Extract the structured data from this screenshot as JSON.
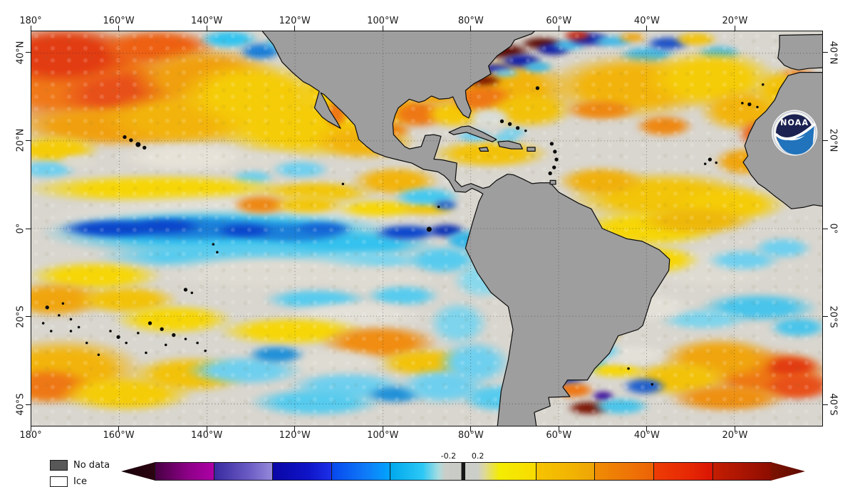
{
  "axes": {
    "lon_labels": [
      "180°",
      "160°W",
      "140°W",
      "120°W",
      "100°W",
      "80°W",
      "60°W",
      "40°W",
      "20°W"
    ],
    "lat_labels": [
      "40°N",
      "20°N",
      "0°",
      "20°S",
      "40°S"
    ]
  },
  "legend": {
    "no_data_label": "No data",
    "ice_label": "Ice"
  },
  "logo": {
    "text": "NOAA"
  },
  "colorbar": {
    "tick_labels": {
      "neg": "-0.2",
      "pos": "0.2"
    },
    "left_arrow_color": "#2b0412",
    "right_arrow_color": "#5e0b00",
    "segments": [
      {
        "w": 1,
        "stops": [
          [
            "#470043",
            0
          ],
          [
            "#8c0086",
            55
          ],
          [
            "#ad00a6",
            100
          ]
        ]
      },
      {
        "w": 1,
        "nb": false,
        "stops": [
          [
            "#3a2aa0",
            0
          ],
          [
            "#6a5cc4",
            60
          ],
          [
            "#9488da",
            100
          ]
        ]
      },
      {
        "w": 1,
        "nb": false,
        "stops": [
          [
            "#0a06a6",
            0
          ],
          [
            "#0f14c8",
            60
          ],
          [
            "#1c30e8",
            100
          ]
        ]
      },
      {
        "w": 1,
        "nb": false,
        "stops": [
          [
            "#0748ee",
            0
          ],
          [
            "#0f7cf8",
            60
          ],
          [
            "#02a4fe",
            100
          ]
        ]
      },
      {
        "w": 1,
        "nb": false,
        "stops": [
          [
            "#00a8ec",
            0
          ],
          [
            "#2cc8f6",
            55
          ],
          [
            "#a8dce0",
            82
          ],
          [
            "#cbcdc8",
            94
          ],
          [
            "#cbcdc8",
            100
          ]
        ]
      },
      {
        "w": 0.5,
        "nb": true,
        "stops": [
          [
            "#c9cbc6",
            0
          ],
          [
            "#c9cbc6",
            44
          ],
          [
            "#161616",
            44
          ],
          [
            "#161616",
            58
          ],
          [
            "#cccec9",
            58
          ],
          [
            "#cccec9",
            100
          ]
        ]
      },
      {
        "w": 1,
        "nb": true,
        "stops": [
          [
            "#cccec9",
            0
          ],
          [
            "#ddd89a",
            12
          ],
          [
            "#f4ec02",
            38
          ],
          [
            "#f8dc00",
            100
          ]
        ]
      },
      {
        "w": 1,
        "nb": false,
        "stops": [
          [
            "#f6c400",
            0
          ],
          [
            "#f2b402",
            60
          ],
          [
            "#eea406",
            100
          ]
        ]
      },
      {
        "w": 1,
        "nb": false,
        "stops": [
          [
            "#f08c04",
            0
          ],
          [
            "#ee7406",
            60
          ],
          [
            "#ec6206",
            100
          ]
        ]
      },
      {
        "w": 1,
        "nb": false,
        "stops": [
          [
            "#ee3c04",
            0
          ],
          [
            "#e62804",
            60
          ],
          [
            "#da1404",
            100
          ]
        ]
      },
      {
        "w": 1,
        "nb": false,
        "stops": [
          [
            "#c41e02",
            0
          ],
          [
            "#a81402",
            55
          ],
          [
            "#8c0d00",
            100
          ]
        ]
      }
    ]
  },
  "map": {
    "land_color": "#9e9e9e",
    "coast_color": "#0c0c0c",
    "ocean_neutral": "#d9d6cf",
    "blobs": [
      [
        6,
        12,
        16,
        14,
        "#f07818"
      ],
      [
        4,
        6,
        10,
        8,
        "#e23c12"
      ],
      [
        12,
        16,
        9,
        7,
        "#e8501a"
      ],
      [
        16,
        4,
        8,
        5,
        "#ee6012"
      ],
      [
        22,
        12,
        10,
        9,
        "#f0a00e"
      ],
      [
        10,
        24,
        14,
        6,
        "#f0a00e"
      ],
      [
        20,
        22,
        12,
        8,
        "#f2b40c"
      ],
      [
        28,
        16,
        10,
        9,
        "#f5cc08"
      ],
      [
        3,
        30,
        6,
        4,
        "#f5cc08"
      ],
      [
        25,
        2,
        4,
        2.5,
        "#2fc3f0"
      ],
      [
        29,
        5,
        3,
        2.5,
        "#1b7fd9"
      ],
      [
        33,
        3,
        4,
        2.5,
        "#2fc3f0"
      ],
      [
        40,
        4,
        6,
        4,
        "#2fc3f0"
      ],
      [
        44,
        9,
        5,
        4,
        "#45c8ee"
      ],
      [
        42,
        5,
        3,
        2,
        "#1b58d0"
      ],
      [
        48,
        3,
        4,
        3,
        "#d9d6cf"
      ],
      [
        34,
        24,
        12,
        9,
        "#f5cc08"
      ],
      [
        40,
        16,
        8,
        7,
        "#f5cc08"
      ],
      [
        45,
        20,
        6,
        5,
        "#f2c20a"
      ],
      [
        20,
        32,
        10,
        4,
        "#e6e2d8"
      ],
      [
        30,
        33,
        6,
        3,
        "#dcd9d0"
      ],
      [
        34,
        35,
        4,
        2.5,
        "#6fcfee"
      ],
      [
        28,
        37,
        3,
        2,
        "#6fcfee"
      ],
      [
        2,
        35,
        4,
        2.5,
        "#6fcfee"
      ],
      [
        6,
        33,
        3,
        2,
        "#dcd9d0"
      ],
      [
        16,
        40,
        18,
        4,
        "#f6d607"
      ],
      [
        36,
        41,
        8,
        3.5,
        "#f2c60a"
      ],
      [
        46,
        38,
        6,
        4,
        "#f2b40c"
      ],
      [
        26,
        48,
        26,
        8,
        "#e3e0d8"
      ],
      [
        24,
        51,
        24,
        6.5,
        "#35c2ee"
      ],
      [
        40,
        54,
        12,
        4,
        "#35c2ee"
      ],
      [
        20,
        50,
        15,
        3.5,
        "#1b7fd9"
      ],
      [
        33,
        51,
        8,
        3,
        "#1b7fd9"
      ],
      [
        10,
        50,
        7,
        2.6,
        "#0b46cc"
      ],
      [
        17,
        49.5,
        5,
        2.2,
        "#0b46cc"
      ],
      [
        27,
        50.5,
        4,
        2,
        "#0b46cc"
      ],
      [
        37,
        50,
        4,
        2,
        "#1566d6"
      ],
      [
        47.5,
        51,
        4.5,
        2.2,
        "#0b46cc"
      ],
      [
        52.5,
        50.5,
        2.6,
        2,
        "#0a2fb4"
      ],
      [
        55,
        53,
        3,
        3,
        "#35b6e8"
      ],
      [
        29,
        44,
        4,
        2.8,
        "#ee8812"
      ],
      [
        35,
        44,
        5,
        2.5,
        "#f2c60a"
      ],
      [
        44,
        45,
        6,
        2.5,
        "#f6d607"
      ],
      [
        50,
        45,
        4,
        2,
        "#f2c60a"
      ],
      [
        25,
        57,
        18,
        4,
        "#57cbee"
      ],
      [
        42,
        58,
        9,
        3,
        "#7dd4ec"
      ],
      [
        52,
        58,
        5,
        4,
        "#57cbee"
      ],
      [
        57,
        63,
        4,
        5,
        "#8ad8ec"
      ],
      [
        30,
        61,
        16,
        5,
        "#dedbd2"
      ],
      [
        44,
        63,
        8,
        4,
        "#dedbd2"
      ],
      [
        8,
        62,
        9,
        4,
        "#f6d607"
      ],
      [
        3,
        68,
        7,
        5,
        "#f0a50e"
      ],
      [
        12,
        68,
        7,
        4,
        "#f2c20a"
      ],
      [
        18,
        73,
        8,
        4,
        "#f6d607"
      ],
      [
        36,
        68,
        7,
        3,
        "#57cbee"
      ],
      [
        47,
        67,
        5,
        3,
        "#57cbee"
      ],
      [
        41,
        72,
        10,
        4,
        "#e3e0d8"
      ],
      [
        33,
        76,
        10,
        4,
        "#f6d607"
      ],
      [
        44,
        79,
        8,
        5,
        "#f08d12"
      ],
      [
        50,
        84,
        7,
        4,
        "#f2c20a"
      ],
      [
        38,
        84,
        8,
        4,
        "#dedbd2"
      ],
      [
        4,
        86,
        11,
        9,
        "#f2b40c"
      ],
      [
        2,
        90,
        6,
        5,
        "#ee7715"
      ],
      [
        12,
        92,
        9,
        5,
        "#f5cc08"
      ],
      [
        20,
        87,
        8,
        5,
        "#f2c20a"
      ],
      [
        27,
        86,
        8,
        4,
        "#6fcfee"
      ],
      [
        31,
        82,
        4,
        2.5,
        "#2090d8"
      ],
      [
        40,
        90,
        8,
        4,
        "#6fcfee"
      ],
      [
        36,
        94,
        9,
        4,
        "#57cbee"
      ],
      [
        46,
        92,
        4,
        2.5,
        "#2090d8"
      ],
      [
        52,
        90,
        6,
        5,
        "#6fcfee"
      ],
      [
        56,
        84,
        5,
        6,
        "#6fcfee"
      ],
      [
        59,
        93,
        5,
        4,
        "#57cbee"
      ],
      [
        54,
        74,
        4,
        6,
        "#7dd4ec"
      ],
      [
        38.5,
        21,
        1.5,
        4,
        "#ee7715"
      ],
      [
        42,
        28,
        7,
        5,
        "#f2b40c"
      ],
      [
        45,
        25,
        3.5,
        2.5,
        "#ee8812"
      ],
      [
        50,
        42,
        4.5,
        2.6,
        "#45c8ee"
      ],
      [
        52.3,
        44,
        1.8,
        1.4,
        "#1b60d0"
      ],
      [
        49,
        21,
        4,
        4,
        "#ee7715"
      ],
      [
        53.5,
        21,
        4,
        4,
        "#f5c808"
      ],
      [
        51,
        17,
        3,
        2,
        "#f0a50e"
      ],
      [
        58,
        31,
        8,
        4,
        "#f2c20a"
      ],
      [
        56,
        26.5,
        2.6,
        1.6,
        "#6fcfee"
      ],
      [
        61,
        25.5,
        2,
        1.2,
        "#6fcfee"
      ],
      [
        60,
        15,
        9,
        9,
        "#f2b40c"
      ],
      [
        57,
        17,
        4.5,
        4,
        "#ee7715"
      ],
      [
        63,
        20,
        6,
        5,
        "#f2c20a"
      ],
      [
        59.5,
        5,
        4,
        2.2,
        "#5e0a00"
      ],
      [
        64.5,
        3,
        3,
        1.8,
        "#5e0a00"
      ],
      [
        57,
        12.5,
        2.8,
        1.6,
        "#7a1402"
      ],
      [
        62,
        7.5,
        3,
        2,
        "#141fa6"
      ],
      [
        66,
        4.5,
        2.6,
        2,
        "#141fa6"
      ],
      [
        58.5,
        9.5,
        3,
        1.6,
        "#2a30b0"
      ],
      [
        64,
        9,
        2.2,
        1.6,
        "#40b8e8"
      ],
      [
        68,
        3.5,
        2.4,
        1.6,
        "#40b8e8"
      ],
      [
        60,
        10.5,
        2,
        1.2,
        "#6fcfee"
      ],
      [
        58,
        22,
        3,
        3,
        "#d9ddd8"
      ],
      [
        60,
        27,
        2.2,
        1.6,
        "#6fcfee"
      ],
      [
        70.5,
        2,
        3,
        2,
        "#141fa6"
      ],
      [
        69,
        1,
        2,
        1.4,
        "#cc2808"
      ],
      [
        73.5,
        2.5,
        3,
        1.6,
        "#40b8e8"
      ],
      [
        76,
        1.5,
        2,
        1.4,
        "#f0a50e"
      ],
      [
        78,
        6,
        4,
        2.6,
        "#40b8e8"
      ],
      [
        80.5,
        3,
        3,
        2,
        "#1b50c8"
      ],
      [
        83,
        8,
        4,
        3,
        "#dedbd2"
      ],
      [
        87,
        5.5,
        3,
        2,
        "#40b8e8"
      ],
      [
        84,
        2,
        3,
        2,
        "#f2c20a"
      ],
      [
        76,
        14,
        12,
        9,
        "#f2b40c"
      ],
      [
        72,
        20,
        5,
        3,
        "#ee8812"
      ],
      [
        80,
        24,
        4,
        3,
        "#ee8812"
      ],
      [
        86,
        12,
        9,
        8,
        "#f5cc08"
      ],
      [
        90,
        20,
        6,
        6,
        "#f2b40c"
      ],
      [
        92.5,
        26,
        3.5,
        4,
        "#ec5e10"
      ],
      [
        90,
        33,
        4,
        4,
        "#f0a50e"
      ],
      [
        95,
        15,
        4,
        6,
        "#f2c20a"
      ],
      [
        97,
        10.5,
        2.5,
        1,
        "#ee7715"
      ],
      [
        80,
        42,
        13,
        7,
        "#f2c40a"
      ],
      [
        72,
        38,
        6,
        4,
        "#f0b00c"
      ],
      [
        88,
        44,
        8,
        5,
        "#f5cc08"
      ],
      [
        78,
        50,
        10,
        5,
        "#f6d607"
      ],
      [
        84,
        48,
        8,
        4,
        "#eeb80b"
      ],
      [
        86,
        60,
        9,
        6,
        "#dedbd2"
      ],
      [
        90,
        58,
        5,
        3,
        "#6fcfee"
      ],
      [
        95,
        55,
        4,
        3,
        "#6fcfee"
      ],
      [
        79,
        58,
        6,
        4,
        "#f6d607"
      ],
      [
        92,
        70,
        8,
        4,
        "#49c4ea"
      ],
      [
        85,
        73,
        6,
        3,
        "#7dd4ec"
      ],
      [
        97,
        75,
        4,
        3,
        "#49c4ea"
      ],
      [
        78,
        70,
        6,
        4,
        "#e3e0d8"
      ],
      [
        73,
        73,
        4,
        3,
        "#ee8812"
      ],
      [
        70,
        77,
        5,
        3,
        "#f2c20a"
      ],
      [
        93,
        87,
        9,
        7,
        "#ee7715"
      ],
      [
        96,
        85,
        4,
        3,
        "#e23c12"
      ],
      [
        97,
        90,
        5,
        4,
        "#e8501a"
      ],
      [
        87,
        83,
        8,
        6,
        "#f0a50e"
      ],
      [
        82,
        88,
        7,
        5,
        "#f2c20a"
      ],
      [
        88,
        93,
        8,
        4,
        "#ee9012"
      ],
      [
        66.5,
        88,
        4,
        3,
        "#1b50c8"
      ],
      [
        69.5,
        84,
        4,
        3,
        "#49c4ea"
      ],
      [
        68.5,
        91,
        3,
        2.4,
        "#ee7715"
      ],
      [
        72.3,
        92.5,
        1.6,
        1.6,
        "#3a0a9a"
      ],
      [
        70.5,
        95.5,
        3,
        2,
        "#7a1402"
      ],
      [
        74.5,
        95,
        4,
        2.4,
        "#49c4ea"
      ],
      [
        77.5,
        90,
        3,
        2.4,
        "#2060d0"
      ],
      [
        74,
        86,
        4,
        2,
        "#f6d607"
      ],
      [
        76,
        82,
        5,
        3,
        "#e3e0d8"
      ],
      [
        71,
        81,
        4,
        2.5,
        "#57cbee"
      ],
      [
        64,
        84,
        3,
        3,
        "#57cbee"
      ]
    ],
    "island_specks": [
      [
        11.8,
        26.8,
        3
      ],
      [
        12.6,
        27.6,
        3
      ],
      [
        13.5,
        28.7,
        4
      ],
      [
        14.3,
        29.5,
        3
      ],
      [
        23,
        54,
        2
      ],
      [
        23.5,
        56,
        2
      ],
      [
        19.5,
        65.5,
        3
      ],
      [
        20.3,
        66.3,
        2
      ],
      [
        15,
        74,
        3
      ],
      [
        16.5,
        75.5,
        3
      ],
      [
        18,
        77,
        3
      ],
      [
        19.5,
        78,
        2
      ],
      [
        21,
        79,
        2
      ],
      [
        13.5,
        76.5,
        2
      ],
      [
        17,
        79.5,
        2
      ],
      [
        22,
        81,
        2
      ],
      [
        12,
        79,
        2
      ],
      [
        14.5,
        81.5,
        2
      ],
      [
        10,
        76,
        2
      ],
      [
        11,
        77.5,
        3
      ],
      [
        7,
        79,
        2
      ],
      [
        5,
        76,
        2
      ],
      [
        8.5,
        82,
        2
      ],
      [
        2,
        70,
        3
      ],
      [
        3.5,
        72,
        2
      ],
      [
        1.5,
        74,
        2
      ],
      [
        5,
        73,
        2
      ],
      [
        4,
        69,
        2
      ],
      [
        6,
        75,
        2
      ],
      [
        2.5,
        76,
        2
      ],
      [
        50.3,
        50.2,
        4
      ],
      [
        65.8,
        28.5,
        3
      ],
      [
        66.2,
        30.5,
        3
      ],
      [
        66.4,
        32.5,
        3
      ],
      [
        66.1,
        34.5,
        3
      ],
      [
        65.6,
        36,
        3
      ],
      [
        60.5,
        23.5,
        3
      ],
      [
        61.5,
        24.5,
        3
      ],
      [
        59.5,
        22.8,
        3
      ],
      [
        62.5,
        25.2,
        2
      ],
      [
        64,
        14.4,
        3
      ],
      [
        90.8,
        18.5,
        3
      ],
      [
        91.8,
        19.2,
        2
      ],
      [
        89.9,
        18.2,
        2
      ],
      [
        92.5,
        13.5,
        2
      ],
      [
        85.8,
        32.5,
        3
      ],
      [
        86.6,
        33.3,
        2
      ],
      [
        85.2,
        33.6,
        2
      ],
      [
        75.5,
        85.5,
        2
      ],
      [
        78.5,
        89.5,
        2
      ],
      [
        39.4,
        38.7,
        2
      ],
      [
        51.5,
        44.5,
        2
      ]
    ]
  }
}
